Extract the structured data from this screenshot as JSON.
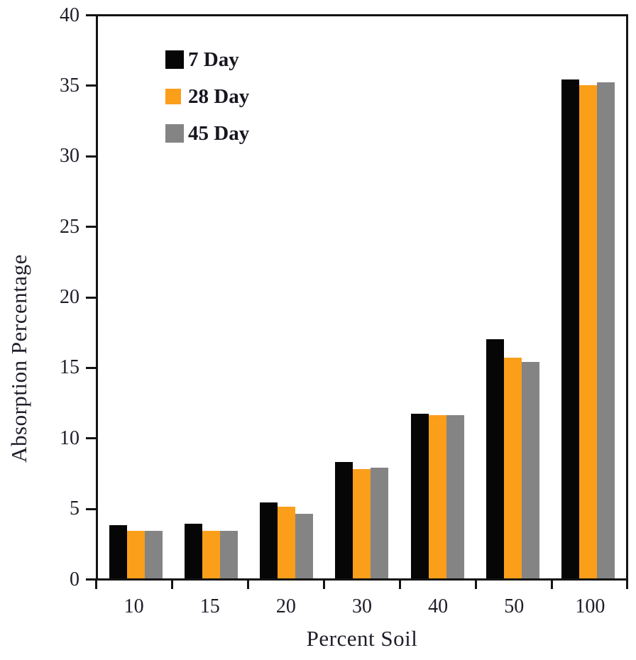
{
  "chart_data": {
    "type": "bar",
    "title": "",
    "xlabel": "Percent Soil",
    "ylabel": "Absorption Percentage",
    "categories": [
      "10",
      "15",
      "20",
      "30",
      "40",
      "50",
      "100"
    ],
    "series": [
      {
        "name": "7 Day",
        "color": "#060606",
        "values": [
          3.8,
          3.9,
          5.4,
          8.3,
          11.7,
          17.0,
          35.5
        ]
      },
      {
        "name": "28 Day",
        "color": "#FB9E1A",
        "values": [
          3.4,
          3.4,
          5.1,
          7.8,
          11.6,
          15.7,
          35.1
        ]
      },
      {
        "name": "45 Day",
        "color": "#848484",
        "values": [
          3.4,
          3.4,
          4.6,
          7.9,
          11.6,
          15.4,
          35.3
        ]
      }
    ],
    "ylim": [
      0,
      40
    ],
    "yticks": [
      0,
      5,
      10,
      15,
      20,
      25,
      30,
      35,
      40
    ],
    "grid": false,
    "legend_position": "upper-left"
  },
  "colors": {
    "axis": "#141414",
    "text": "#1e1e2a",
    "background": "#ffffff"
  }
}
